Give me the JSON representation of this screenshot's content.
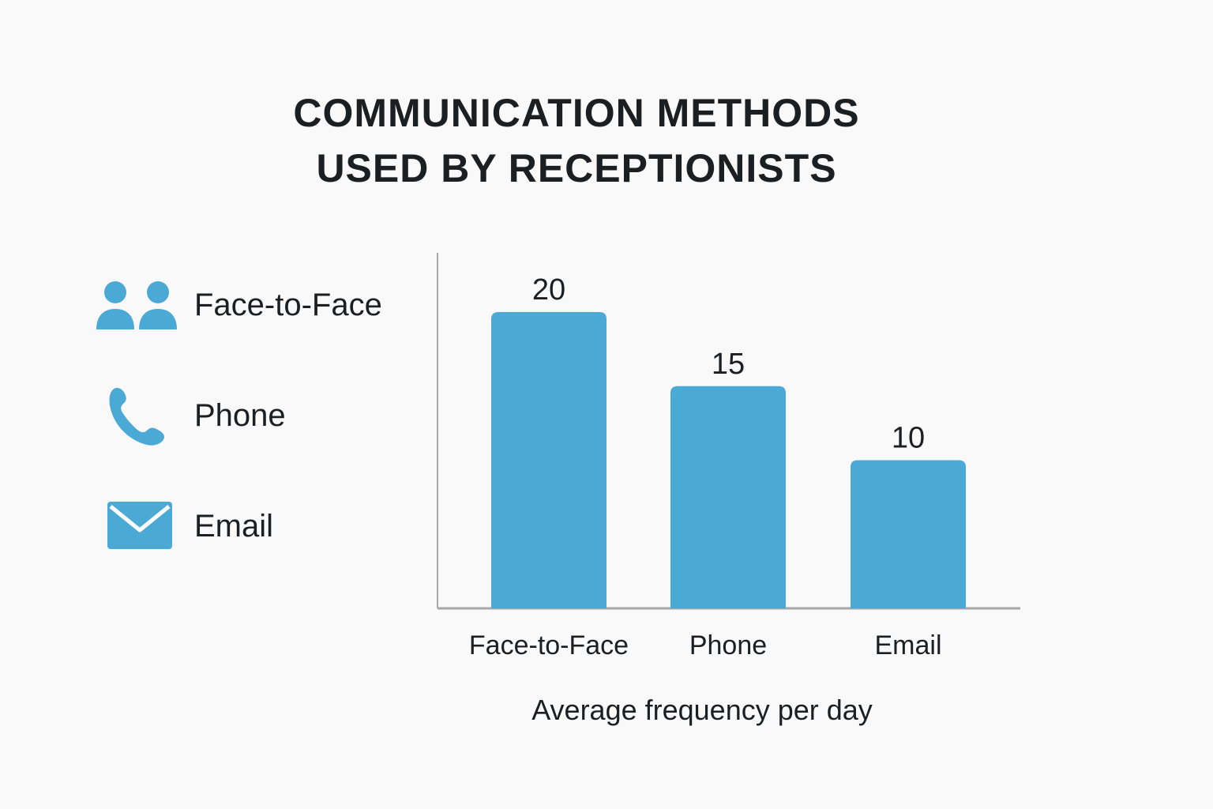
{
  "title_lines": [
    "COMMUNICATION METHODS",
    "USED BY RECEPTIONISTS"
  ],
  "legend": [
    {
      "label": "Face-to-Face",
      "icon": "people-icon"
    },
    {
      "label": "Phone",
      "icon": "phone-icon"
    },
    {
      "label": "Email",
      "icon": "envelope-icon"
    }
  ],
  "colors": {
    "bar": "#4ba9d6",
    "icon": "#4ba9d6",
    "axis": "#a8a8a8",
    "text": "#1c1f22",
    "background": "#f9f9f9"
  },
  "chart_data": {
    "type": "bar",
    "title": "COMMUNICATION METHODS USED BY RECEPTIONISTS",
    "categories": [
      "Face-to-Face",
      "Phone",
      "Email"
    ],
    "values": [
      20,
      15,
      10
    ],
    "data_labels": [
      "20",
      "15",
      "10"
    ],
    "xlabel": "Average frequency per day",
    "ylabel": "",
    "ylim": [
      0,
      24
    ],
    "grid": false,
    "legend_placement": "left"
  }
}
